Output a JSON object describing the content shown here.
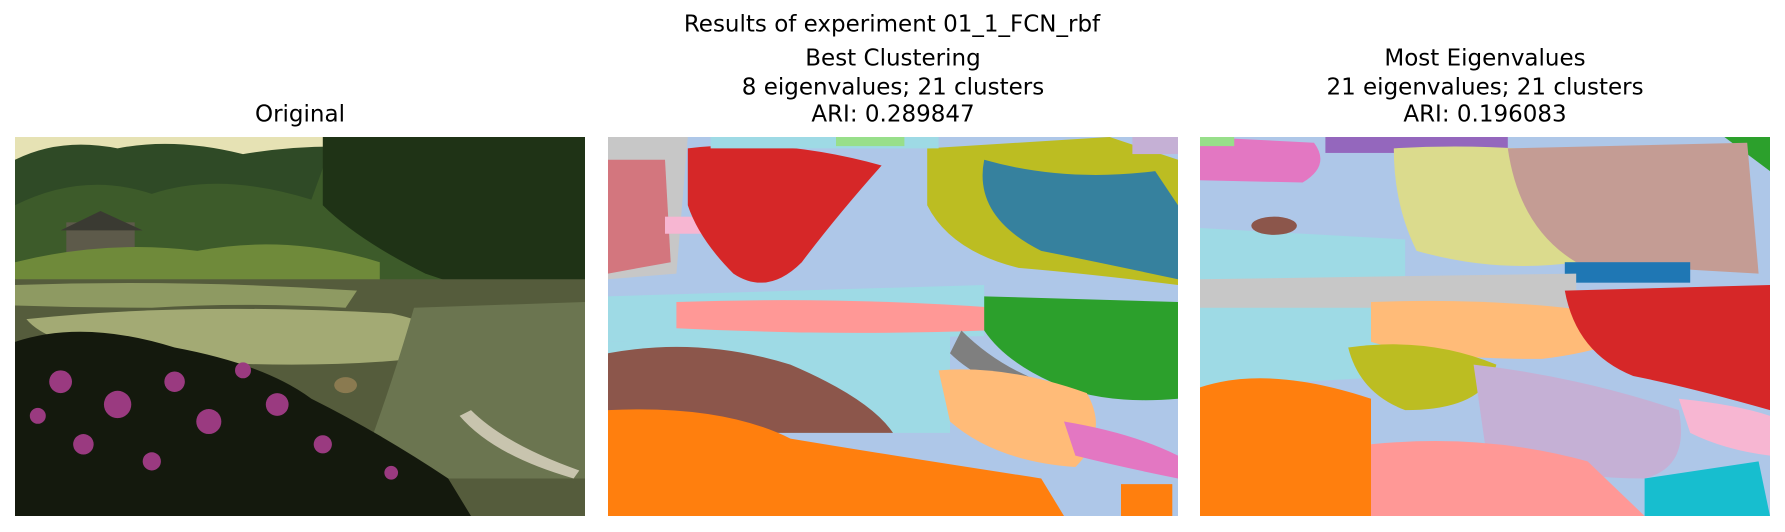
{
  "title": "Results of experiment 01_1_FCN_rbf",
  "panels": [
    {
      "title_lines": [
        "Original"
      ]
    },
    {
      "title_lines": [
        "Best Clustering",
        "8 eigenvalues; 21 clusters",
        "ARI: 0.289847"
      ]
    },
    {
      "title_lines": [
        "Most Eigenvalues",
        "21 eigenvalues; 21 clusters",
        "ARI: 0.196083"
      ]
    }
  ]
}
